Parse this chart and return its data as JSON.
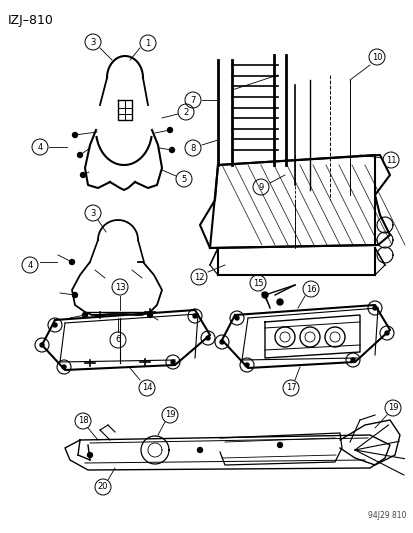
{
  "title": "IZJ–810",
  "watermark": "94J29 810",
  "bg_color": "#ffffff",
  "fig_width": 4.14,
  "fig_height": 5.33,
  "dpi": 100
}
